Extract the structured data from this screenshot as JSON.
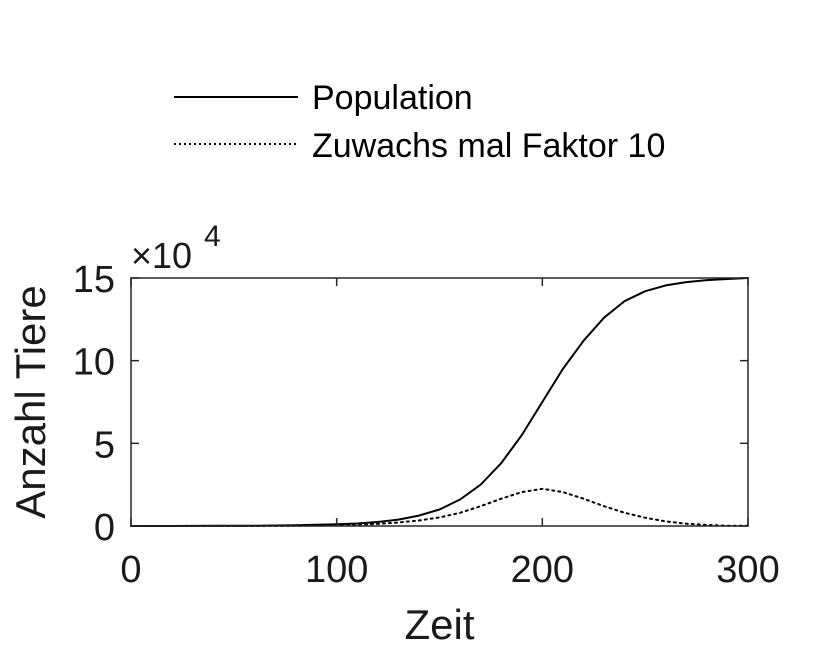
{
  "chart_data": {
    "type": "line",
    "xlabel": "Zeit",
    "ylabel": "Anzahl Tiere",
    "xlim": [
      0,
      300
    ],
    "ylim": [
      0,
      15
    ],
    "y_multiplier_label": {
      "base": "×10",
      "exponent": "4"
    },
    "x_ticks": [
      0,
      100,
      200,
      300
    ],
    "x_tick_labels": [
      "0",
      "100",
      "200",
      "300"
    ],
    "y_ticks": [
      0,
      5,
      10,
      15
    ],
    "y_tick_labels": [
      "0",
      "5",
      "10",
      "15"
    ],
    "grid": false,
    "legend_position": "top-left, outside above the axes",
    "x": [
      0,
      20,
      40,
      60,
      80,
      100,
      110,
      120,
      130,
      140,
      150,
      160,
      170,
      180,
      190,
      200,
      210,
      220,
      230,
      240,
      250,
      260,
      270,
      280,
      290,
      300
    ],
    "series": [
      {
        "name": "Population",
        "style": "solid",
        "color": "#000000",
        "values": [
          0.0,
          0.0,
          0.01,
          0.02,
          0.05,
          0.1,
          0.15,
          0.24,
          0.39,
          0.63,
          1.0,
          1.6,
          2.5,
          3.8,
          5.5,
          7.5,
          9.5,
          11.2,
          12.6,
          13.6,
          14.2,
          14.55,
          14.75,
          14.87,
          14.94,
          15.0
        ]
      },
      {
        "name": "Zuwachs mal Faktor 10",
        "style": "dotted",
        "color": "#000000",
        "values": [
          0.0,
          0.0,
          0.0,
          0.0,
          0.01,
          0.05,
          0.08,
          0.13,
          0.21,
          0.33,
          0.52,
          0.8,
          1.2,
          1.65,
          2.05,
          2.25,
          2.05,
          1.65,
          1.2,
          0.8,
          0.5,
          0.28,
          0.14,
          0.06,
          0.02,
          0.01
        ]
      }
    ]
  }
}
